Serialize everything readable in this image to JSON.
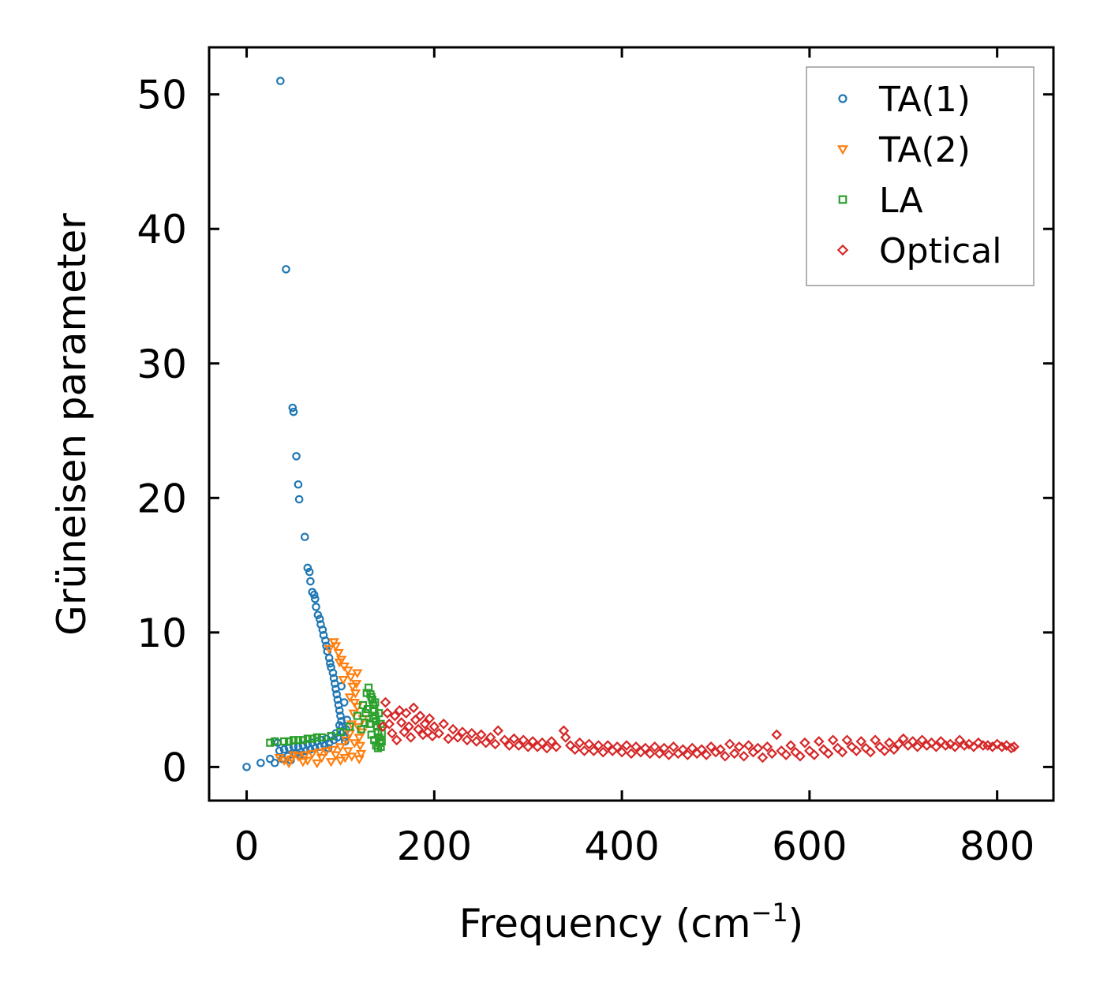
{
  "chart_data": {
    "type": "scatter",
    "title": "",
    "xlabel_main": "Frequency (cm",
    "xlabel_sup": "−1",
    "xlabel_close": ")",
    "ylabel": "Grüneisen parameter",
    "xlim": [
      -40,
      860
    ],
    "ylim": [
      -2.5,
      53.5
    ],
    "x_ticks": [
      0,
      200,
      400,
      600,
      800
    ],
    "y_ticks": [
      0,
      10,
      20,
      30,
      40,
      50
    ],
    "x_tick_labels": [
      "0",
      "200",
      "400",
      "600",
      "800"
    ],
    "y_tick_labels": [
      "0",
      "10",
      "20",
      "30",
      "40",
      "50"
    ],
    "legend_position": "top-right",
    "series": [
      {
        "name": "TA(1)",
        "marker": "circle",
        "color": "#1f77b4",
        "points": [
          [
            0,
            0
          ],
          [
            15,
            0.3
          ],
          [
            25,
            0.6
          ],
          [
            30,
            1.9
          ],
          [
            33,
            1.8
          ],
          [
            36,
            51
          ],
          [
            42,
            37
          ],
          [
            49,
            26.7
          ],
          [
            50,
            26.4
          ],
          [
            53,
            23.1
          ],
          [
            55,
            21.0
          ],
          [
            56,
            19.9
          ],
          [
            62,
            17.1
          ],
          [
            65,
            14.8
          ],
          [
            67,
            14.5
          ],
          [
            68,
            13.8
          ],
          [
            70,
            13.0
          ],
          [
            72,
            12.8
          ],
          [
            73,
            12.5
          ],
          [
            74,
            11.9
          ],
          [
            76,
            11.3
          ],
          [
            78,
            11.0
          ],
          [
            79,
            10.6
          ],
          [
            81,
            10.2
          ],
          [
            82,
            9.8
          ],
          [
            84,
            9.4
          ],
          [
            85,
            9.0
          ],
          [
            86,
            8.6
          ],
          [
            88,
            8.1
          ],
          [
            89,
            7.7
          ],
          [
            90,
            7.4
          ],
          [
            92,
            7.0
          ],
          [
            93,
            6.6
          ],
          [
            94,
            6.2
          ],
          [
            95,
            5.8
          ],
          [
            96,
            5.4
          ],
          [
            97,
            5.0
          ],
          [
            98,
            4.6
          ],
          [
            99,
            4.2
          ],
          [
            100,
            3.8
          ],
          [
            101,
            3.4
          ],
          [
            102,
            3.0
          ],
          [
            103,
            2.6
          ],
          [
            104,
            2.2
          ],
          [
            105,
            1.9
          ],
          [
            106,
            2.8
          ],
          [
            107,
            3.5
          ],
          [
            104,
            4.8
          ],
          [
            101,
            6.0
          ],
          [
            35,
            1.2
          ],
          [
            40,
            1.3
          ],
          [
            45,
            1.4
          ],
          [
            50,
            1.5
          ],
          [
            55,
            1.5
          ],
          [
            60,
            1.6
          ],
          [
            65,
            1.7
          ],
          [
            70,
            1.8
          ],
          [
            75,
            1.9
          ],
          [
            80,
            2.0
          ],
          [
            85,
            2.1
          ],
          [
            90,
            2.3
          ],
          [
            95,
            2.5
          ],
          [
            38,
            0.6
          ],
          [
            44,
            0.8
          ],
          [
            52,
            1.0
          ],
          [
            58,
            1.1
          ],
          [
            63,
            1.2
          ],
          [
            68,
            1.3
          ],
          [
            73,
            1.4
          ],
          [
            78,
            1.5
          ],
          [
            83,
            1.6
          ],
          [
            88,
            1.8
          ],
          [
            93,
            2.0
          ],
          [
            30,
            0.3
          ],
          [
            47,
            0.5
          ],
          [
            57,
            0.9
          ],
          [
            87,
            1.4
          ],
          [
            97,
            2.2
          ],
          [
            99,
            3.1
          ]
        ]
      },
      {
        "name": "TA(2)",
        "marker": "triangle-down",
        "color": "#ff7f0e",
        "points": [
          [
            40,
            0.5
          ],
          [
            48,
            0.6
          ],
          [
            55,
            0.8
          ],
          [
            62,
            0.9
          ],
          [
            70,
            1.0
          ],
          [
            78,
            1.1
          ],
          [
            85,
            1.2
          ],
          [
            92,
            1.3
          ],
          [
            100,
            1.5
          ],
          [
            106,
            2.0
          ],
          [
            110,
            2.5
          ],
          [
            112,
            3.2
          ],
          [
            114,
            4.0
          ],
          [
            115,
            4.8
          ],
          [
            116,
            5.5
          ],
          [
            117,
            6.2
          ],
          [
            118,
            7.0
          ],
          [
            95,
            9.0
          ],
          [
            98,
            8.5
          ],
          [
            101,
            8.0
          ],
          [
            104,
            7.5
          ],
          [
            108,
            7.2
          ],
          [
            111,
            6.7
          ],
          [
            113,
            6.0
          ],
          [
            119,
            3.0
          ],
          [
            120,
            2.2
          ],
          [
            121,
            1.6
          ],
          [
            122,
            1.0
          ],
          [
            120,
            0.6
          ],
          [
            105,
            0.7
          ],
          [
            90,
            0.4
          ],
          [
            75,
            0.3
          ],
          [
            60,
            0.4
          ],
          [
            45,
            0.3
          ],
          [
            35,
            0.7
          ],
          [
            50,
            0.9
          ],
          [
            65,
            0.5
          ],
          [
            80,
            0.7
          ],
          [
            95,
            0.9
          ],
          [
            108,
            1.2
          ],
          [
            115,
            1.8
          ],
          [
            123,
            2.6
          ],
          [
            124,
            3.6
          ],
          [
            118,
            4.5
          ],
          [
            110,
            5.2
          ],
          [
            103,
            6.5
          ],
          [
            99,
            7.8
          ],
          [
            93,
            9.3
          ],
          [
            88,
            8.8
          ],
          [
            112,
            0.8
          ],
          [
            100,
            0.5
          ]
        ]
      },
      {
        "name": "LA",
        "marker": "square",
        "color": "#2ca02c",
        "points": [
          [
            25,
            1.8
          ],
          [
            30,
            1.9
          ],
          [
            40,
            1.9
          ],
          [
            50,
            2.0
          ],
          [
            60,
            2.0
          ],
          [
            70,
            2.1
          ],
          [
            80,
            2.2
          ],
          [
            90,
            2.3
          ],
          [
            100,
            2.6
          ],
          [
            110,
            3.0
          ],
          [
            118,
            3.8
          ],
          [
            124,
            4.6
          ],
          [
            128,
            5.5
          ],
          [
            130,
            5.9
          ],
          [
            132,
            5.4
          ],
          [
            134,
            5.0
          ],
          [
            135,
            4.6
          ],
          [
            136,
            4.2
          ],
          [
            137,
            3.8
          ],
          [
            138,
            3.4
          ],
          [
            139,
            3.0
          ],
          [
            140,
            2.6
          ],
          [
            141,
            2.2
          ],
          [
            142,
            1.8
          ],
          [
            140,
            1.4
          ],
          [
            138,
            1.6
          ],
          [
            136,
            2.0
          ],
          [
            133,
            2.4
          ],
          [
            131,
            3.2
          ],
          [
            127,
            4.0
          ],
          [
            122,
            2.8
          ],
          [
            126,
            3.3
          ],
          [
            129,
            4.3
          ],
          [
            133,
            5.2
          ],
          [
            137,
            4.8
          ],
          [
            141,
            4.0
          ],
          [
            143,
            3.2
          ],
          [
            144,
            2.5
          ],
          [
            144,
            1.9
          ],
          [
            143,
            1.5
          ],
          [
            135,
            3.6
          ],
          [
            45,
            1.9
          ],
          [
            55,
            2.0
          ],
          [
            65,
            2.1
          ],
          [
            75,
            2.2
          ]
        ]
      },
      {
        "name": "Optical",
        "marker": "diamond",
        "color": "#d62728",
        "points": [
          [
            145,
            3.0
          ],
          [
            148,
            4.8
          ],
          [
            150,
            4.0
          ],
          [
            152,
            3.2
          ],
          [
            155,
            2.5
          ],
          [
            158,
            3.8
          ],
          [
            160,
            2.0
          ],
          [
            163,
            4.2
          ],
          [
            165,
            3.3
          ],
          [
            168,
            2.6
          ],
          [
            170,
            4.0
          ],
          [
            173,
            3.0
          ],
          [
            175,
            2.2
          ],
          [
            178,
            4.4
          ],
          [
            180,
            3.5
          ],
          [
            183,
            2.8
          ],
          [
            185,
            3.8
          ],
          [
            188,
            2.4
          ],
          [
            190,
            3.2
          ],
          [
            193,
            2.6
          ],
          [
            195,
            3.6
          ],
          [
            198,
            2.3
          ],
          [
            200,
            3.0
          ],
          [
            205,
            2.5
          ],
          [
            210,
            3.2
          ],
          [
            215,
            2.1
          ],
          [
            220,
            2.8
          ],
          [
            225,
            2.2
          ],
          [
            230,
            2.6
          ],
          [
            235,
            2.0
          ],
          [
            240,
            2.5
          ],
          [
            245,
            1.9
          ],
          [
            250,
            2.4
          ],
          [
            255,
            1.8
          ],
          [
            260,
            2.2
          ],
          [
            265,
            1.7
          ],
          [
            268,
            2.7
          ],
          [
            275,
            2.0
          ],
          [
            280,
            1.6
          ],
          [
            285,
            2.1
          ],
          [
            290,
            1.6
          ],
          [
            295,
            2.0
          ],
          [
            300,
            1.5
          ],
          [
            305,
            1.9
          ],
          [
            310,
            1.5
          ],
          [
            315,
            1.8
          ],
          [
            320,
            1.4
          ],
          [
            325,
            1.9
          ],
          [
            330,
            1.5
          ],
          [
            338,
            2.7
          ],
          [
            340,
            2.2
          ],
          [
            345,
            1.6
          ],
          [
            350,
            1.3
          ],
          [
            355,
            1.8
          ],
          [
            360,
            1.2
          ],
          [
            365,
            1.7
          ],
          [
            370,
            1.2
          ],
          [
            375,
            1.6
          ],
          [
            380,
            1.1
          ],
          [
            385,
            1.6
          ],
          [
            390,
            1.2
          ],
          [
            395,
            1.5
          ],
          [
            400,
            1.1
          ],
          [
            405,
            1.6
          ],
          [
            410,
            1.0
          ],
          [
            415,
            1.5
          ],
          [
            420,
            1.1
          ],
          [
            425,
            1.4
          ],
          [
            430,
            1.0
          ],
          [
            435,
            1.5
          ],
          [
            440,
            1.0
          ],
          [
            445,
            1.4
          ],
          [
            450,
            0.9
          ],
          [
            455,
            1.5
          ],
          [
            460,
            1.0
          ],
          [
            465,
            1.3
          ],
          [
            470,
            0.9
          ],
          [
            475,
            1.4
          ],
          [
            480,
            1.0
          ],
          [
            485,
            1.3
          ],
          [
            490,
            0.9
          ],
          [
            495,
            1.5
          ],
          [
            500,
            1.1
          ],
          [
            505,
            1.3
          ],
          [
            510,
            0.8
          ],
          [
            515,
            1.7
          ],
          [
            520,
            1.0
          ],
          [
            525,
            1.5
          ],
          [
            530,
            0.8
          ],
          [
            535,
            1.6
          ],
          [
            540,
            1.1
          ],
          [
            545,
            1.4
          ],
          [
            550,
            0.7
          ],
          [
            555,
            1.5
          ],
          [
            560,
            1.0
          ],
          [
            565,
            2.4
          ],
          [
            570,
            1.2
          ],
          [
            575,
            0.9
          ],
          [
            580,
            1.6
          ],
          [
            585,
            1.1
          ],
          [
            590,
            0.8
          ],
          [
            595,
            1.8
          ],
          [
            600,
            1.2
          ],
          [
            605,
            0.9
          ],
          [
            610,
            1.9
          ],
          [
            615,
            1.3
          ],
          [
            620,
            1.0
          ],
          [
            625,
            2.0
          ],
          [
            630,
            1.4
          ],
          [
            635,
            1.1
          ],
          [
            640,
            2.0
          ],
          [
            645,
            1.5
          ],
          [
            650,
            1.2
          ],
          [
            655,
            1.9
          ],
          [
            660,
            1.4
          ],
          [
            665,
            1.1
          ],
          [
            670,
            2.0
          ],
          [
            675,
            1.5
          ],
          [
            680,
            1.2
          ],
          [
            685,
            1.8
          ],
          [
            690,
            1.3
          ],
          [
            695,
            1.7
          ],
          [
            700,
            2.1
          ],
          [
            705,
            1.6
          ],
          [
            710,
            1.9
          ],
          [
            715,
            1.5
          ],
          [
            720,
            2.0
          ],
          [
            725,
            1.6
          ],
          [
            730,
            1.8
          ],
          [
            735,
            1.5
          ],
          [
            740,
            1.9
          ],
          [
            745,
            1.6
          ],
          [
            750,
            1.7
          ],
          [
            755,
            1.5
          ],
          [
            760,
            2.0
          ],
          [
            765,
            1.6
          ],
          [
            770,
            1.7
          ],
          [
            775,
            1.5
          ],
          [
            780,
            1.8
          ],
          [
            785,
            1.6
          ],
          [
            790,
            1.6
          ],
          [
            795,
            1.5
          ],
          [
            800,
            1.7
          ],
          [
            805,
            1.5
          ],
          [
            810,
            1.6
          ],
          [
            815,
            1.4
          ],
          [
            818,
            1.5
          ]
        ]
      }
    ]
  }
}
